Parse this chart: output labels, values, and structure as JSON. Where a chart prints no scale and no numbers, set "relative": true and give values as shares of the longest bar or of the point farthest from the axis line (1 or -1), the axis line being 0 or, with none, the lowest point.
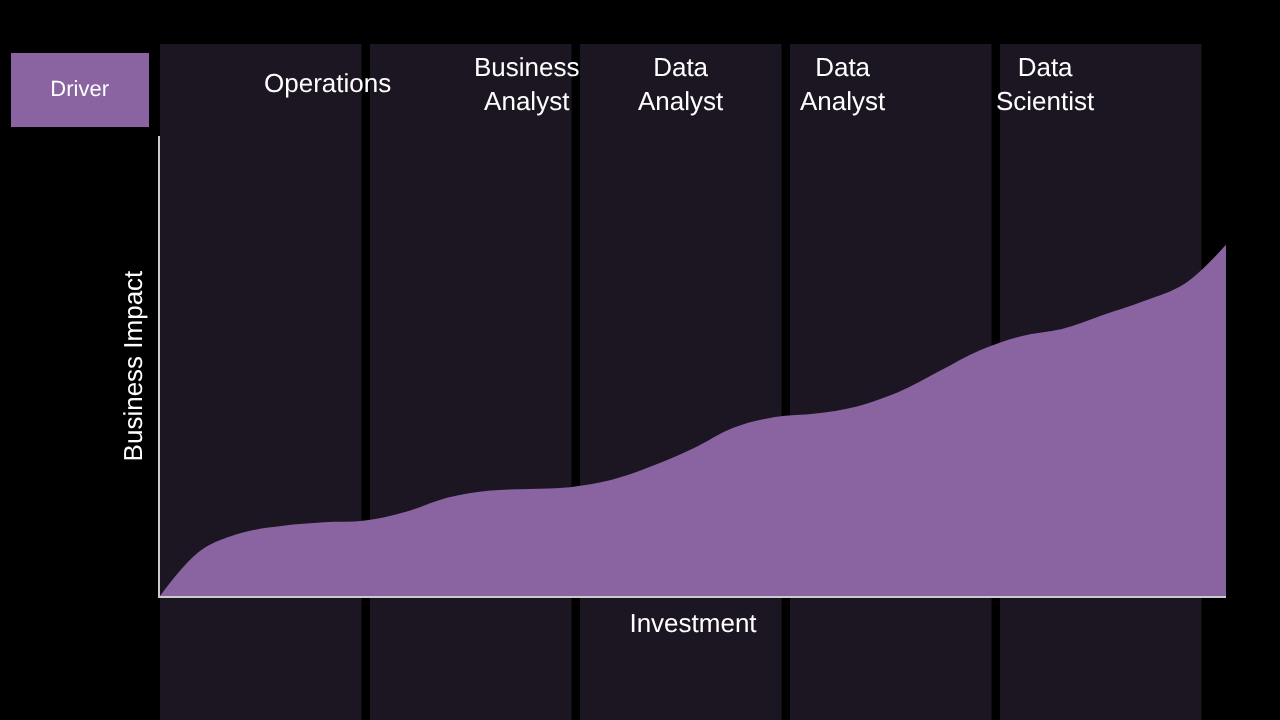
{
  "chart_data": {
    "type": "area",
    "relative": true,
    "xlabel": "Investment",
    "ylabel": "Business Impact",
    "annotations": [
      "Driver",
      "Operations",
      "Business Analyst",
      "Data Analyst",
      "Data Analyst",
      "Data Scientist"
    ],
    "categories": [
      null,
      null,
      null,
      null,
      null,
      null,
      null,
      null,
      null,
      null,
      null,
      null,
      null,
      null,
      null,
      null,
      null,
      null,
      null,
      null,
      null,
      null,
      null,
      null,
      null,
      null,
      null
    ],
    "series": [
      {
        "color": "#8a64a0",
        "values": [
          0,
          0.13,
          0.18,
          0.2,
          0.21,
          0.215,
          0.24,
          0.28,
          0.3,
          0.305,
          0.31,
          0.33,
          0.37,
          0.42,
          0.48,
          0.51,
          0.52,
          0.54,
          0.58,
          0.64,
          0.7,
          0.74,
          0.76,
          0.8,
          0.84,
          0.89,
          1
        ]
      }
    ],
    "grid": false
  }
}
